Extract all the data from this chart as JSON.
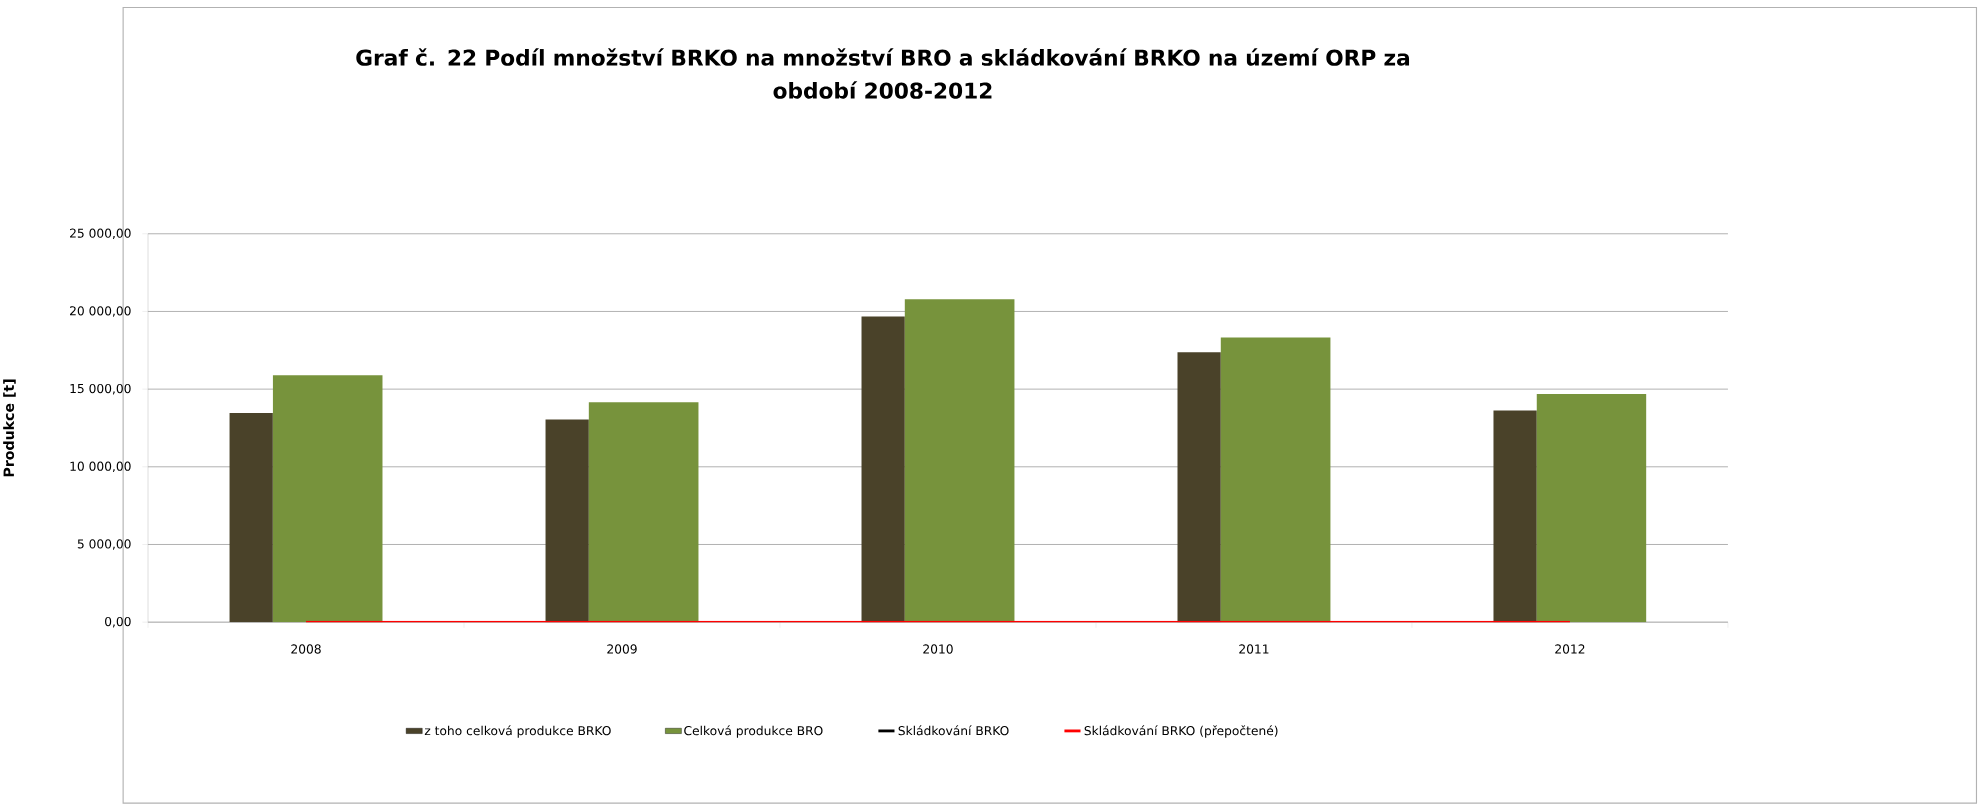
{
  "chart_data": {
    "type": "bar",
    "title": "Graf č. 22 Podíl množství BRKO na množství BRO a skládkování BRKO na území ORP za období 2008-2012",
    "ylabel": "Produkce [t]",
    "categories": [
      "2008",
      "2009",
      "2010",
      "2011",
      "2012"
    ],
    "series": [
      {
        "name": "z toho celková produkce BRKO",
        "color": "#4a4229",
        "values": [
          13470,
          13050,
          19680,
          17370,
          13630
        ]
      },
      {
        "name": "Celková produkce BRO",
        "color": "#77933c",
        "values": [
          15900,
          14160,
          20790,
          18320,
          14680
        ]
      },
      {
        "name": "Skládkování BRKO",
        "type": "line",
        "color": "#000000",
        "values": [
          null,
          null,
          null,
          null,
          null
        ]
      },
      {
        "name": "Skládkování BRKO (přepočtené)",
        "type": "line",
        "color": "#ff0000",
        "values": [
          0,
          0,
          0,
          0,
          0
        ]
      }
    ],
    "ylim": [
      0,
      25000
    ],
    "yticks": [
      {
        "value": 0,
        "label": "0,00"
      },
      {
        "value": 5000,
        "label": "5 000,00"
      },
      {
        "value": 10000,
        "label": "10 000,00"
      },
      {
        "value": 15000,
        "label": "15 000,00"
      },
      {
        "value": 20000,
        "label": "20 000,00"
      },
      {
        "value": 25000,
        "label": "25 000,00"
      }
    ],
    "grid": "y",
    "legend": "bottom"
  }
}
